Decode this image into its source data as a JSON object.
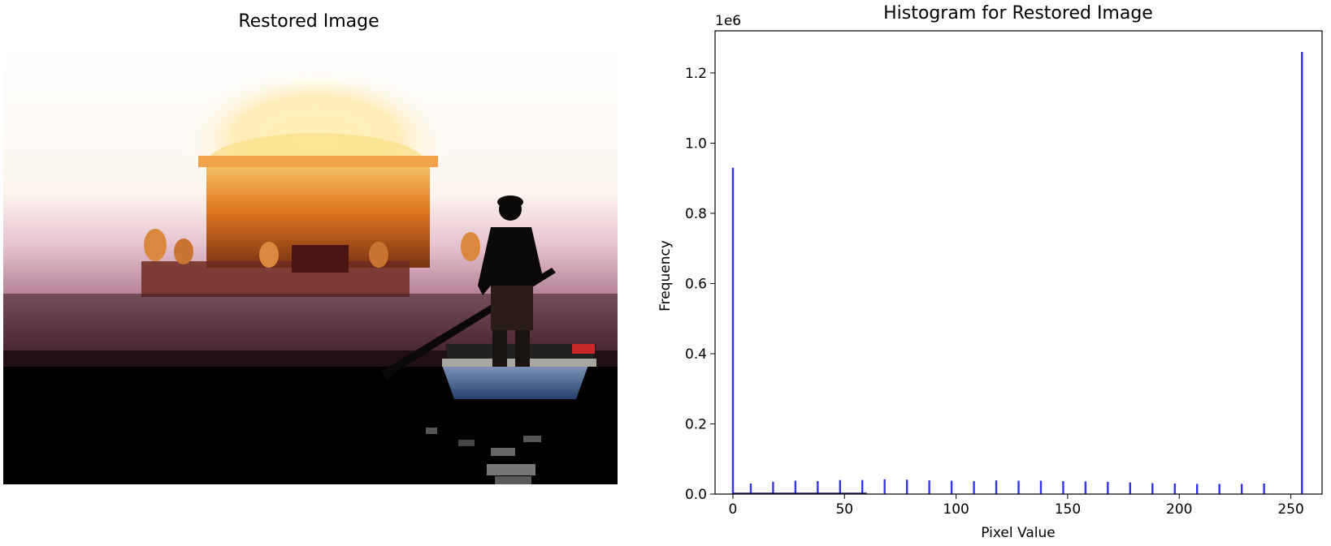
{
  "left_panel": {
    "title": "Restored Image"
  },
  "chart_data": {
    "type": "bar",
    "title": "Histogram for Restored Image",
    "xlabel": "Pixel Value",
    "ylabel": "Frequency",
    "offset_text": "1e6",
    "xlim": [
      -8,
      264
    ],
    "ylim": [
      0,
      1.32
    ],
    "xticks": [
      0,
      50,
      100,
      150,
      200,
      250
    ],
    "yticks": [
      0.0,
      0.2,
      0.4,
      0.6,
      0.8,
      1.0,
      1.2
    ],
    "ytick_labels": [
      "0.0",
      "0.2",
      "0.4",
      "0.6",
      "0.8",
      "1.0",
      "1.2"
    ],
    "bar_color": "#3333ee",
    "x": [
      0,
      8,
      18,
      28,
      38,
      48,
      58,
      68,
      78,
      88,
      98,
      108,
      118,
      128,
      138,
      148,
      158,
      168,
      178,
      188,
      198,
      208,
      218,
      228,
      238,
      255
    ],
    "values": [
      0.93,
      0.03,
      0.035,
      0.038,
      0.037,
      0.04,
      0.04,
      0.042,
      0.041,
      0.039,
      0.038,
      0.037,
      0.039,
      0.038,
      0.038,
      0.037,
      0.036,
      0.035,
      0.033,
      0.031,
      0.03,
      0.029,
      0.029,
      0.029,
      0.03,
      1.26
    ],
    "grid": false
  }
}
